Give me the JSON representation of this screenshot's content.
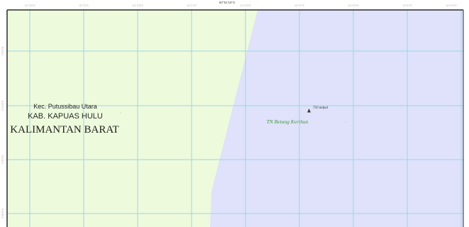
{
  "colors": {
    "land": "#eefadc",
    "park": "#dfe2fa",
    "grid": "#9ad6e6",
    "frame": "#2a2a2a",
    "park_label": "#3f9a3a",
    "admin_label": "#2b2b2b",
    "tick_label": "#c9a8a8"
  },
  "map": {
    "title_fragment": "50°51'18\"S",
    "top_ticks": [
      "112°2'60\"E",
      "112°3'0\"E",
      "112°3'30\"E",
      "112°4'0\"E",
      "112°4'30\"E",
      "112°5'0\"E",
      "112°5'30\"E",
      "112°6'0\"E",
      "112°6'30\"E"
    ],
    "left_ticks": [
      "0°50'0\"N",
      "0°49'30\"N",
      "0°49'0\"N",
      "0°48'30\"N"
    ]
  },
  "labels": {
    "kecamatan": "Kec. Putussibau Utara",
    "kabupaten": "KAB. KAPUAS HULU",
    "provinsi": "KALIMANTAN BARAT",
    "taman_nasional": "TN Betung Kerihun",
    "elevation": "750 mdpal"
  },
  "icons": {
    "summit": "triangle-summit-icon"
  }
}
